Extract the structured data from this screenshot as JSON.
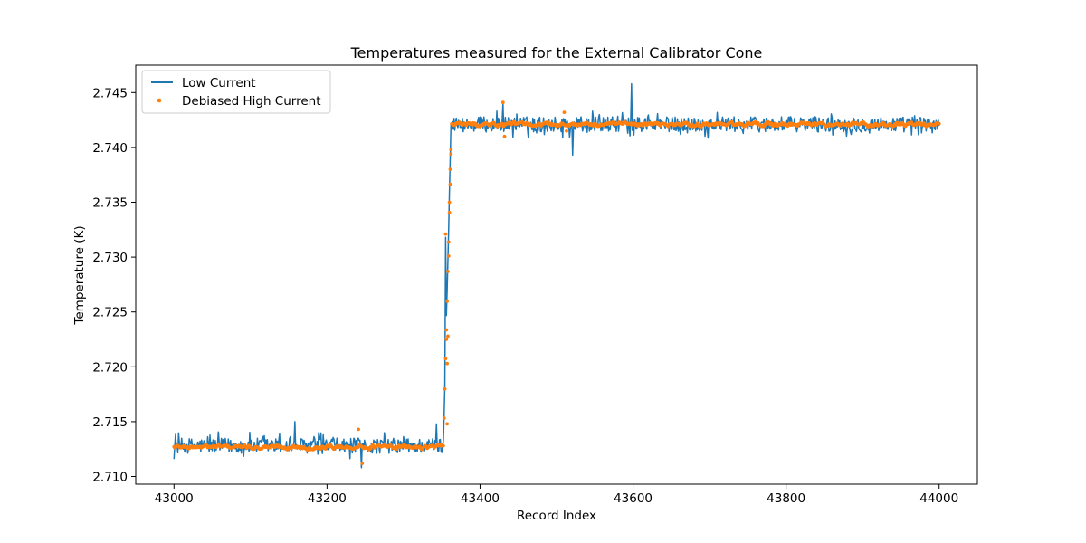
{
  "chart_data": {
    "type": "line",
    "title": "Temperatures measured for the External Calibrator Cone",
    "xlabel": "Record Index",
    "ylabel": "Temperature (K)",
    "xlim": [
      42950,
      44050
    ],
    "ylim": [
      2.7093,
      2.7475
    ],
    "xticks": [
      43000,
      43200,
      43400,
      43600,
      43800,
      44000
    ],
    "yticks": [
      2.71,
      2.715,
      2.72,
      2.725,
      2.73,
      2.735,
      2.74,
      2.745
    ],
    "xtick_labels": [
      "43000",
      "43200",
      "43400",
      "43600",
      "43800",
      "44000"
    ],
    "ytick_labels": [
      "2.710",
      "2.715",
      "2.720",
      "2.725",
      "2.730",
      "2.735",
      "2.740",
      "2.745"
    ],
    "grid": false,
    "legend_placement": "upper-left",
    "series": [
      {
        "name": "Low Current",
        "style": "line",
        "color": "#1f77b4",
        "x_start": 43000,
        "x_end": 44000,
        "points": 1001,
        "baseline_before": 2.7128,
        "baseline_after": 2.7421,
        "transition_start": 43352,
        "transition_end": 43362,
        "noise_amplitude": 0.0007,
        "spikes": [
          {
            "x": 43158,
            "y": 2.715
          },
          {
            "x": 43245,
            "y": 2.7108
          },
          {
            "x": 43343,
            "y": 2.7148
          },
          {
            "x": 43355,
            "y": 2.7318
          },
          {
            "x": 43598,
            "y": 2.7458
          },
          {
            "x": 43521,
            "y": 2.7393
          },
          {
            "x": 43430,
            "y": 2.744
          }
        ]
      },
      {
        "name": "Debiased High Current",
        "style": "scatter",
        "color": "#ff7f0e",
        "x_start": 43000,
        "x_end": 44000,
        "points": 1001,
        "baseline_before": 2.7127,
        "baseline_after": 2.7421,
        "transition_start": 43352,
        "transition_end": 43363,
        "noise_amplitude": 0.00025,
        "notable_points": [
          {
            "x": 43355,
            "y": 2.7321
          },
          {
            "x": 43356,
            "y": 2.7225
          },
          {
            "x": 43357,
            "y": 2.7203
          },
          {
            "x": 43358,
            "y": 2.7228
          },
          {
            "x": 43359,
            "y": 2.7301
          },
          {
            "x": 43360,
            "y": 2.735
          },
          {
            "x": 43361,
            "y": 2.738
          },
          {
            "x": 43362,
            "y": 2.7398
          },
          {
            "x": 43357,
            "y": 2.7148
          },
          {
            "x": 43241,
            "y": 2.7143
          },
          {
            "x": 43246,
            "y": 2.7112
          },
          {
            "x": 43430,
            "y": 2.7441
          },
          {
            "x": 43432,
            "y": 2.741
          },
          {
            "x": 43510,
            "y": 2.7432
          },
          {
            "x": 43513,
            "y": 2.7415
          }
        ]
      }
    ]
  }
}
